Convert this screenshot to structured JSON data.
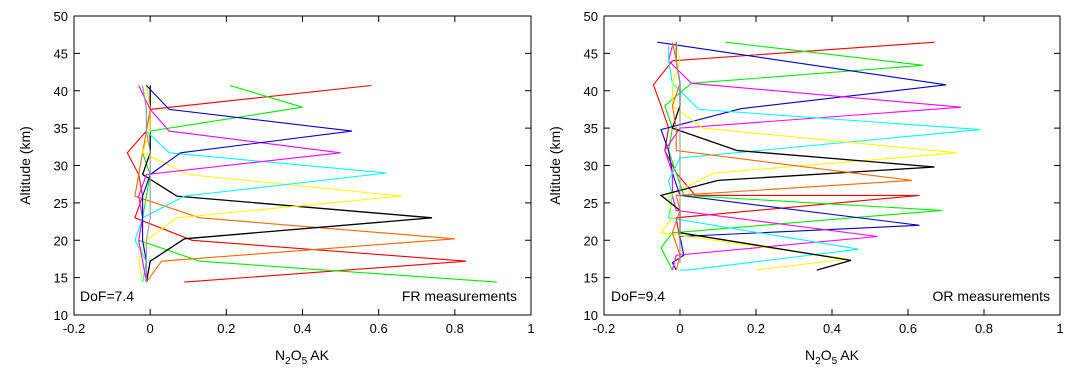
{
  "chart_data": [
    {
      "type": "line",
      "xlabel_main": "N",
      "xlabel_sub1": "2",
      "xlabel_mid": "O",
      "xlabel_sub2": "5",
      "xlabel_tail": " AK",
      "ylabel": "Altitude (km)",
      "xlim": [
        -0.2,
        1.0
      ],
      "ylim": [
        10,
        50
      ],
      "xticks": [
        "-0.2",
        "0",
        "0.2",
        "0.4",
        "0.6",
        "0.8",
        "1"
      ],
      "yticks": [
        "10",
        "15",
        "20",
        "25",
        "30",
        "35",
        "40",
        "45",
        "50"
      ],
      "annotation_left": "DoF=7.4",
      "annotation_right": "FR measurements",
      "grid": false,
      "series": [
        {
          "color": "#ff0000",
          "points": [
            [
              0.09,
              14.4
            ],
            [
              0.83,
              17.2
            ],
            [
              0.11,
              20.0
            ],
            [
              -0.04,
              23.0
            ],
            [
              -0.02,
              25.9
            ],
            [
              -0.03,
              28.8
            ],
            [
              -0.06,
              31.7
            ],
            [
              -0.01,
              34.6
            ],
            [
              0.0,
              37.5
            ],
            [
              0.58,
              40.7
            ]
          ]
        },
        {
          "color": "#00ee00",
          "points": [
            [
              0.91,
              14.4
            ],
            [
              0.13,
              17.2
            ],
            [
              -0.03,
              20.0
            ],
            [
              -0.02,
              23.0
            ],
            [
              -0.01,
              25.9
            ],
            [
              0.0,
              28.8
            ],
            [
              -0.02,
              31.7
            ],
            [
              0.0,
              34.6
            ],
            [
              0.4,
              37.8
            ],
            [
              0.21,
              40.7
            ]
          ]
        },
        {
          "color": "#ff6600",
          "points": [
            [
              -0.01,
              14.4
            ],
            [
              0.03,
              17.2
            ],
            [
              0.8,
              20.2
            ],
            [
              0.13,
              23.0
            ],
            [
              -0.04,
              25.9
            ],
            [
              -0.03,
              28.8
            ],
            [
              -0.02,
              31.7
            ],
            [
              -0.01,
              34.6
            ],
            [
              0.0,
              37.5
            ],
            [
              -0.01,
              40.7
            ]
          ]
        },
        {
          "color": "#000000",
          "points": [
            [
              -0.01,
              14.4
            ],
            [
              0.0,
              17.2
            ],
            [
              0.09,
              20.2
            ],
            [
              0.74,
              23.0
            ],
            [
              0.07,
              25.9
            ],
            [
              -0.02,
              28.8
            ],
            [
              0.0,
              31.7
            ],
            [
              0.0,
              34.6
            ],
            [
              0.0,
              37.5
            ],
            [
              0.0,
              40.7
            ]
          ]
        },
        {
          "color": "#ffff00",
          "points": [
            [
              -0.02,
              14.4
            ],
            [
              -0.03,
              17.2
            ],
            [
              -0.01,
              20.0
            ],
            [
              0.07,
              23.0
            ],
            [
              0.66,
              25.9
            ],
            [
              0.1,
              28.8
            ],
            [
              -0.02,
              31.7
            ],
            [
              0.0,
              34.6
            ],
            [
              0.0,
              37.5
            ],
            [
              -0.01,
              40.7
            ]
          ]
        },
        {
          "color": "#00ffff",
          "points": [
            [
              -0.02,
              14.4
            ],
            [
              -0.01,
              17.2
            ],
            [
              -0.04,
              20.0
            ],
            [
              -0.02,
              23.0
            ],
            [
              0.09,
              25.9
            ],
            [
              0.62,
              29.0
            ],
            [
              0.05,
              31.7
            ],
            [
              -0.01,
              34.6
            ],
            [
              -0.01,
              37.5
            ],
            [
              -0.02,
              40.7
            ]
          ]
        },
        {
          "color": "#ff00ff",
          "points": [
            [
              -0.01,
              14.4
            ],
            [
              -0.02,
              17.2
            ],
            [
              -0.03,
              20.0
            ],
            [
              -0.02,
              23.0
            ],
            [
              -0.03,
              25.9
            ],
            [
              -0.01,
              28.8
            ],
            [
              0.5,
              31.7
            ],
            [
              0.05,
              34.6
            ],
            [
              0.0,
              37.5
            ],
            [
              -0.03,
              40.7
            ]
          ]
        },
        {
          "color": "#0000cc",
          "points": [
            [
              -0.01,
              14.4
            ],
            [
              -0.01,
              17.2
            ],
            [
              -0.02,
              20.0
            ],
            [
              -0.02,
              23.0
            ],
            [
              -0.02,
              25.9
            ],
            [
              0.0,
              28.8
            ],
            [
              0.08,
              31.7
            ],
            [
              0.53,
              34.6
            ],
            [
              0.05,
              37.5
            ],
            [
              -0.01,
              40.7
            ]
          ]
        },
        {
          "color": "#999999",
          "points": [
            [
              -0.01,
              14.4
            ],
            [
              -0.01,
              17.2
            ],
            [
              -0.01,
              20.0
            ],
            [
              0.0,
              23.0
            ],
            [
              0.0,
              25.9
            ],
            [
              0.0,
              28.8
            ],
            [
              0.0,
              31.7
            ],
            [
              -0.01,
              34.6
            ],
            [
              -0.01,
              37.5
            ],
            [
              -0.02,
              40.7
            ]
          ]
        }
      ]
    },
    {
      "type": "line",
      "xlabel_main": "N",
      "xlabel_sub1": "2",
      "xlabel_mid": "O",
      "xlabel_sub2": "5",
      "xlabel_tail": " AK",
      "ylabel": "Altitude (km)",
      "xlim": [
        -0.2,
        1.0
      ],
      "ylim": [
        10,
        50
      ],
      "xticks": [
        "-0.2",
        "0",
        "0.2",
        "0.4",
        "0.6",
        "0.8",
        "1"
      ],
      "yticks": [
        "10",
        "15",
        "20",
        "25",
        "30",
        "35",
        "40",
        "45",
        "50"
      ],
      "annotation_left": "DoF=9.4",
      "annotation_right": "OR measurements",
      "grid": false,
      "series": [
        {
          "color": "#ff0000",
          "points": [
            [
              0.67,
              46.5
            ],
            [
              -0.02,
              44.0
            ],
            [
              -0.07,
              40.8
            ],
            [
              -0.05,
              38.0
            ],
            [
              -0.03,
              35.0
            ],
            [
              -0.04,
              32.0
            ],
            [
              -0.01,
              29.0
            ],
            [
              0.04,
              26.0
            ],
            [
              0.63,
              26.0
            ],
            [
              -0.01,
              23.0
            ],
            [
              0.0,
              20.0
            ],
            [
              0.0,
              17.0
            ]
          ]
        },
        {
          "color": "#00ee00",
          "points": [
            [
              0.12,
              46.5
            ],
            [
              0.64,
              43.4
            ],
            [
              0.03,
              41.0
            ],
            [
              -0.04,
              38.0
            ],
            [
              -0.02,
              35.0
            ],
            [
              -0.03,
              32.0
            ],
            [
              -0.01,
              29.0
            ],
            [
              0.01,
              26.0
            ],
            [
              0.69,
              24.0
            ],
            [
              -0.02,
              21.0
            ],
            [
              -0.05,
              19.0
            ],
            [
              -0.02,
              16.0
            ]
          ]
        },
        {
          "color": "#0000cc",
          "points": [
            [
              -0.06,
              46.5
            ],
            [
              0.7,
              40.8
            ],
            [
              0.16,
              37.6
            ],
            [
              -0.05,
              34.8
            ],
            [
              -0.03,
              32.0
            ],
            [
              -0.02,
              29.0
            ],
            [
              0.0,
              26.0
            ],
            [
              0.63,
              22.0
            ],
            [
              0.0,
              20.5
            ],
            [
              0.01,
              18.0
            ],
            [
              -0.02,
              17.0
            ],
            [
              -0.01,
              16.0
            ]
          ]
        },
        {
          "color": "#ff00ff",
          "points": [
            [
              -0.02,
              46.0
            ],
            [
              -0.03,
              44.0
            ],
            [
              0.03,
              41.0
            ],
            [
              0.74,
              37.8
            ],
            [
              0.0,
              35.0
            ],
            [
              -0.04,
              32.0
            ],
            [
              -0.02,
              29.0
            ],
            [
              -0.02,
              26.0
            ],
            [
              -0.01,
              24.0
            ],
            [
              0.52,
              20.5
            ],
            [
              -0.01,
              18.0
            ],
            [
              -0.02,
              16.0
            ]
          ]
        },
        {
          "color": "#00ffff",
          "points": [
            [
              -0.03,
              46.0
            ],
            [
              -0.03,
              44.0
            ],
            [
              -0.02,
              41.0
            ],
            [
              0.05,
              37.5
            ],
            [
              0.79,
              34.8
            ],
            [
              0.0,
              31.0
            ],
            [
              -0.03,
              28.0
            ],
            [
              -0.02,
              26.0
            ],
            [
              -0.03,
              23.0
            ],
            [
              0.47,
              18.8
            ],
            [
              0.02,
              16.0
            ],
            [
              0.0,
              16.0
            ]
          ]
        },
        {
          "color": "#ffff00",
          "points": [
            [
              -0.01,
              46.5
            ],
            [
              0.0,
              44.0
            ],
            [
              -0.02,
              41.0
            ],
            [
              -0.02,
              38.0
            ],
            [
              0.06,
              35.0
            ],
            [
              0.73,
              31.7
            ],
            [
              0.09,
              29.0
            ],
            [
              -0.03,
              26.0
            ],
            [
              -0.02,
              23.0
            ],
            [
              -0.05,
              21.0
            ],
            [
              0.44,
              17.5
            ],
            [
              0.2,
              16.0
            ]
          ]
        },
        {
          "color": "#000000",
          "points": [
            [
              -0.01,
              46.5
            ],
            [
              -0.01,
              44.0
            ],
            [
              0.0,
              41.0
            ],
            [
              0.0,
              38.0
            ],
            [
              -0.02,
              35.0
            ],
            [
              0.15,
              32.0
            ],
            [
              0.67,
              29.8
            ],
            [
              0.1,
              28.0
            ],
            [
              -0.05,
              26.0
            ],
            [
              0.0,
              24.0
            ],
            [
              0.0,
              21.0
            ],
            [
              0.45,
              17.3
            ],
            [
              0.36,
              16.0
            ]
          ]
        },
        {
          "color": "#ff6600",
          "points": [
            [
              -0.02,
              46.5
            ],
            [
              -0.01,
              44.0
            ],
            [
              0.0,
              41.0
            ],
            [
              -0.02,
              38.0
            ],
            [
              -0.01,
              35.0
            ],
            [
              -0.01,
              32.0
            ],
            [
              0.61,
              28.0
            ],
            [
              -0.01,
              26.0
            ],
            [
              0.0,
              24.0
            ],
            [
              -0.02,
              21.0
            ],
            [
              0.0,
              18.0
            ],
            [
              -0.01,
              16.0
            ]
          ]
        },
        {
          "color": "#999999",
          "points": [
            [
              -0.01,
              46.5
            ],
            [
              -0.01,
              44.0
            ],
            [
              0.0,
              41.0
            ],
            [
              0.0,
              38.0
            ],
            [
              0.0,
              35.0
            ],
            [
              0.0,
              32.0
            ],
            [
              0.0,
              29.0
            ],
            [
              0.0,
              26.0
            ],
            [
              0.0,
              23.0
            ],
            [
              0.0,
              20.0
            ],
            [
              0.0,
              17.0
            ]
          ]
        }
      ]
    }
  ]
}
